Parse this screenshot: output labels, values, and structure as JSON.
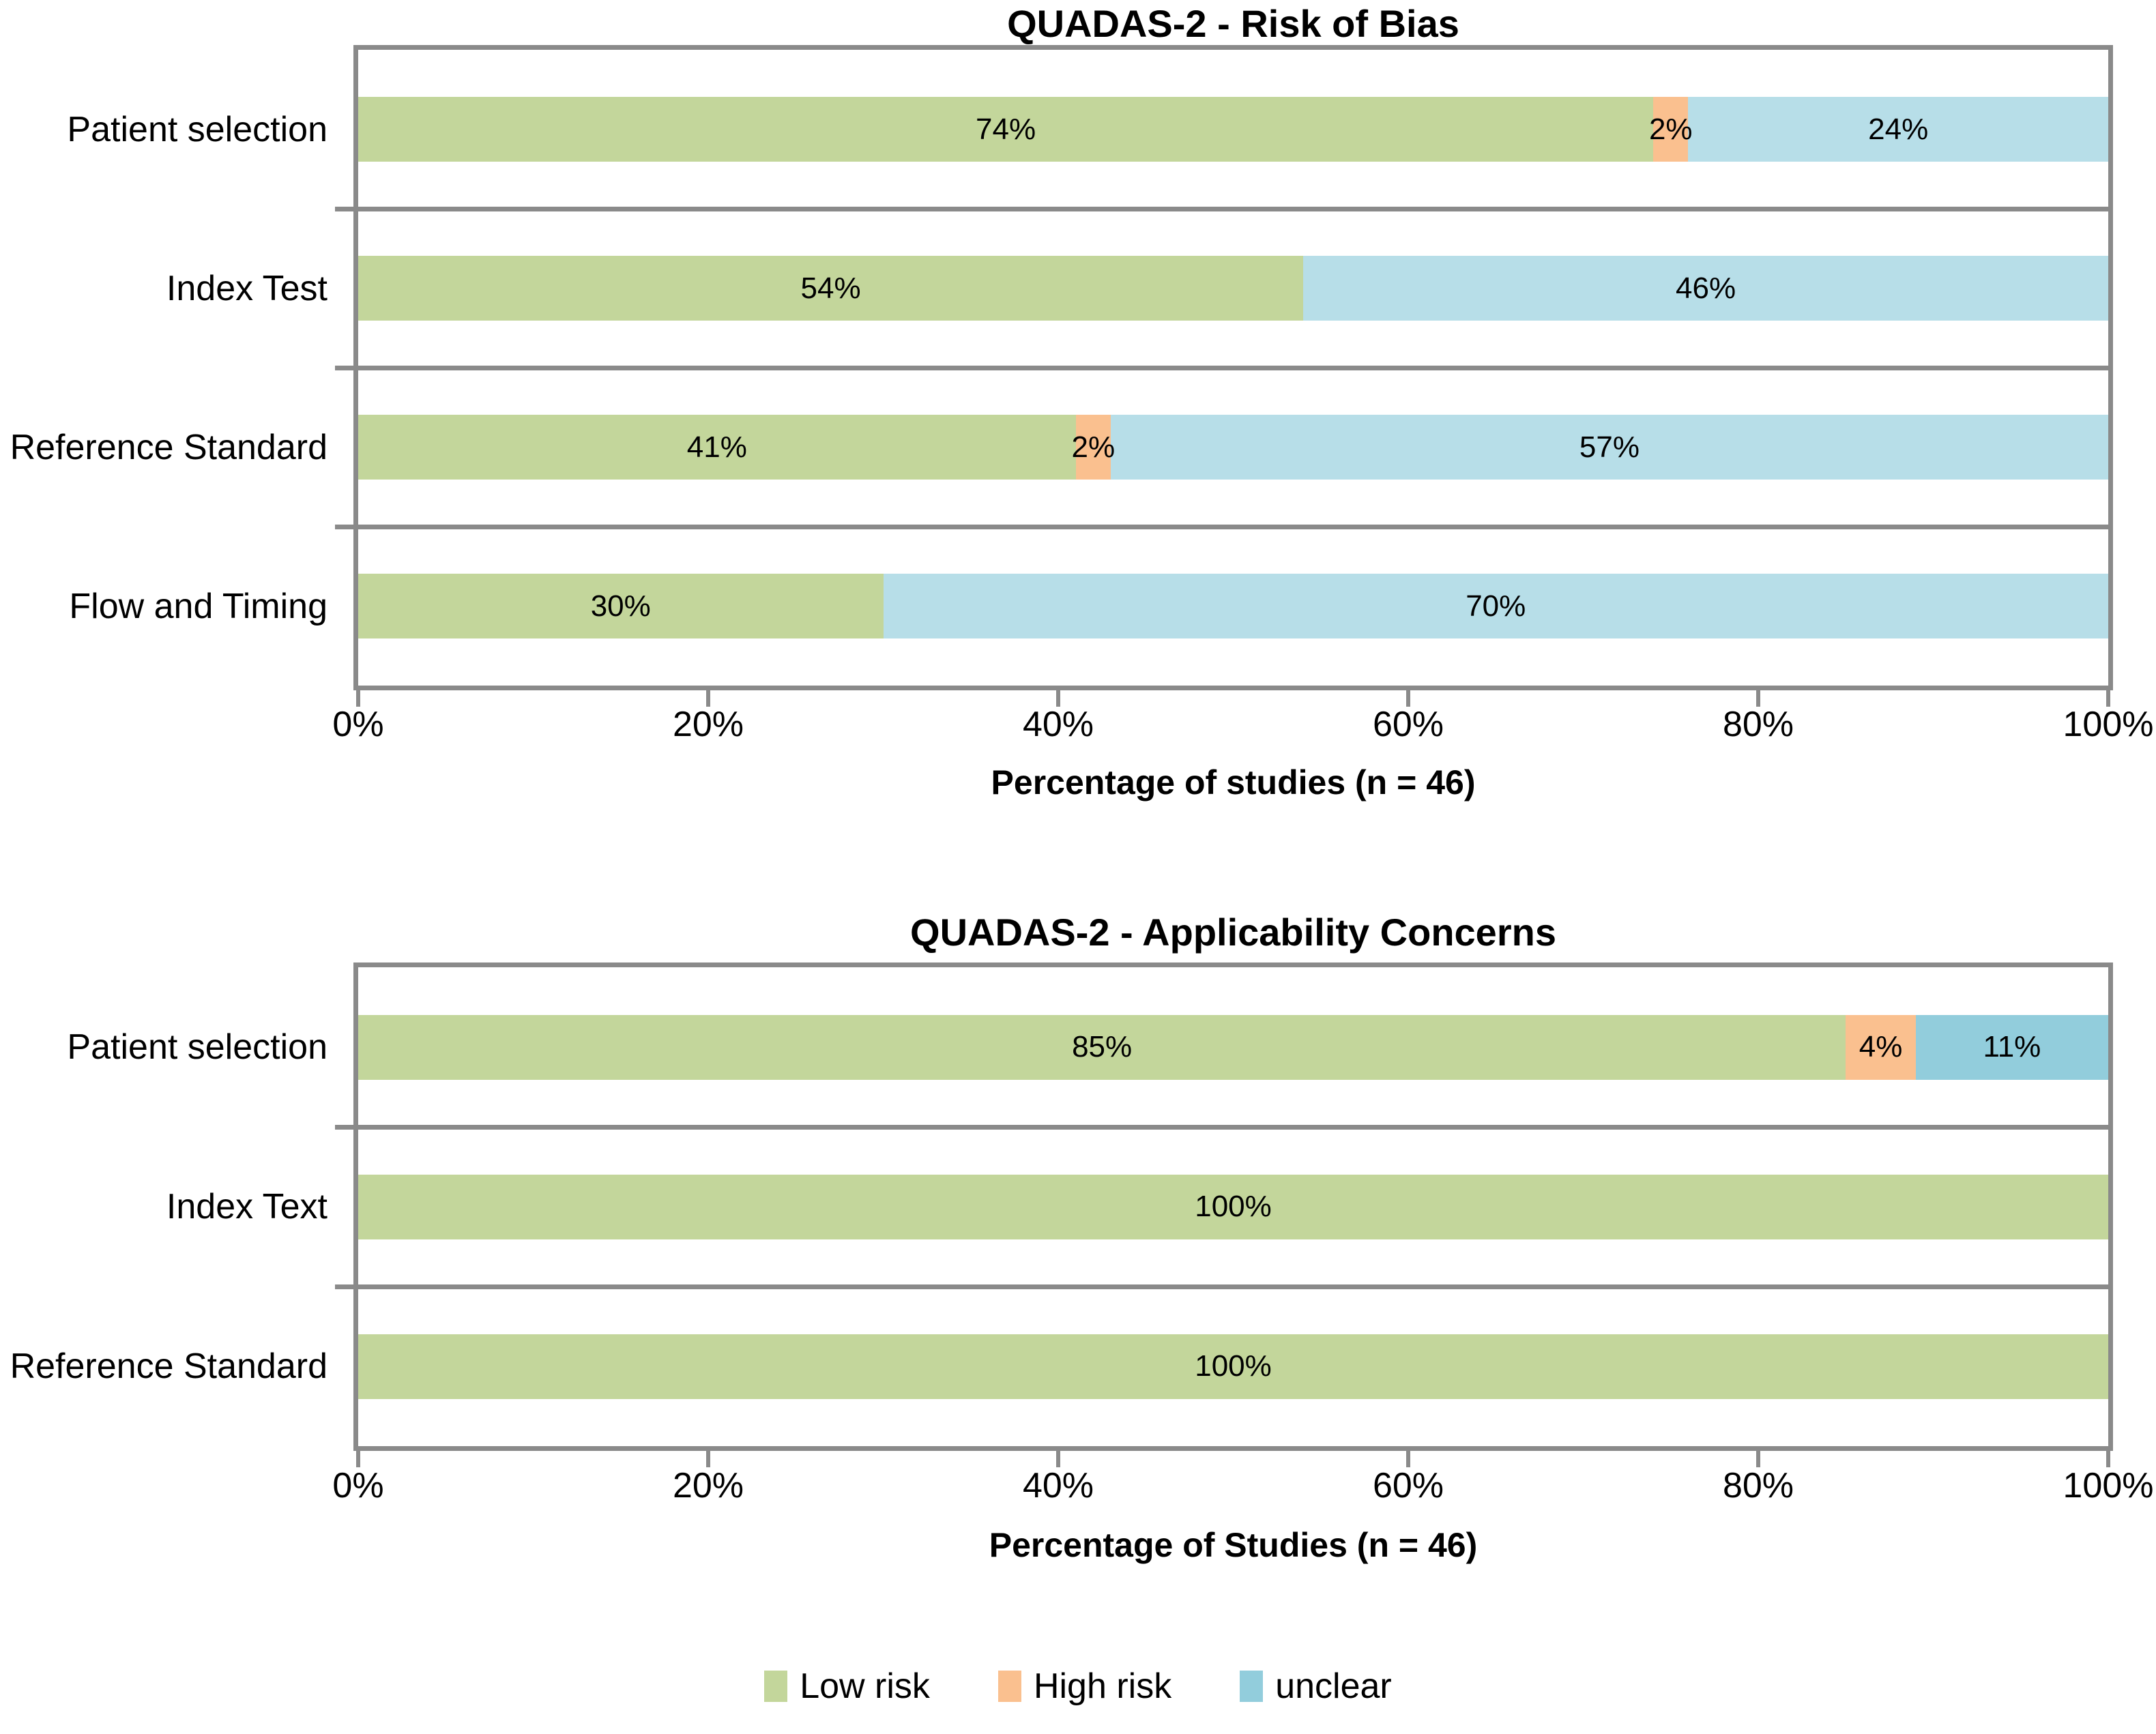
{
  "page": {
    "background": "#ffffff"
  },
  "colors": {
    "low_risk_green": "#c3d69b",
    "high_risk_orange": "#fac08f",
    "unclear_light_blue": "#b7dee8",
    "unclear_medium_blue": "#92cddc",
    "axis_gray": "#8a8a8a",
    "label_black": "#000000"
  },
  "chart_data": [
    {
      "type": "bar",
      "orientation": "horizontal",
      "stacked": true,
      "title": "QUADAS-2 - Risk of Bias",
      "xlabel": "Percentage of studies (n = 46)",
      "xlim": [
        0,
        100
      ],
      "x_tick_labels": [
        "0%",
        "20%",
        "40%",
        "60%",
        "80%",
        "100%"
      ],
      "grid": "category-dividers-only",
      "legend_position": "none",
      "categories": [
        "Patient selection",
        "Index Test",
        "Reference Standard",
        "Flow and Timing"
      ],
      "series": [
        {
          "name": "Low risk",
          "color": "#c3d69b",
          "values": [
            74,
            54,
            41,
            30
          ]
        },
        {
          "name": "High risk",
          "color": "#fac08f",
          "values": [
            2,
            0,
            2,
            0
          ]
        },
        {
          "name": "unclear",
          "color": "#b7dee8",
          "values": [
            24,
            46,
            57,
            70
          ]
        }
      ],
      "data_label_suffix": "%"
    },
    {
      "type": "bar",
      "orientation": "horizontal",
      "stacked": true,
      "title": "QUADAS-2 - Applicability Concerns",
      "xlabel": "Percentage of Studies (n = 46)",
      "xlim": [
        0,
        100
      ],
      "x_tick_labels": [
        "0%",
        "20%",
        "40%",
        "60%",
        "80%",
        "100%"
      ],
      "grid": "category-dividers-only",
      "legend_position": "none",
      "categories": [
        "Patient selection",
        "Index Text",
        "Reference Standard"
      ],
      "series": [
        {
          "name": "Low risk",
          "color": "#c3d69b",
          "values": [
            85,
            100,
            100
          ]
        },
        {
          "name": "High risk",
          "color": "#fac08f",
          "values": [
            4,
            0,
            0
          ]
        },
        {
          "name": "unclear",
          "color": "#92cddc",
          "values": [
            11,
            0,
            0
          ]
        }
      ],
      "data_label_suffix": "%"
    }
  ],
  "legend": {
    "items": [
      {
        "label": "Low risk",
        "color": "#c3d69b"
      },
      {
        "label": "High risk",
        "color": "#fac08f"
      },
      {
        "label": "unclear",
        "color": "#92cddc"
      }
    ]
  }
}
